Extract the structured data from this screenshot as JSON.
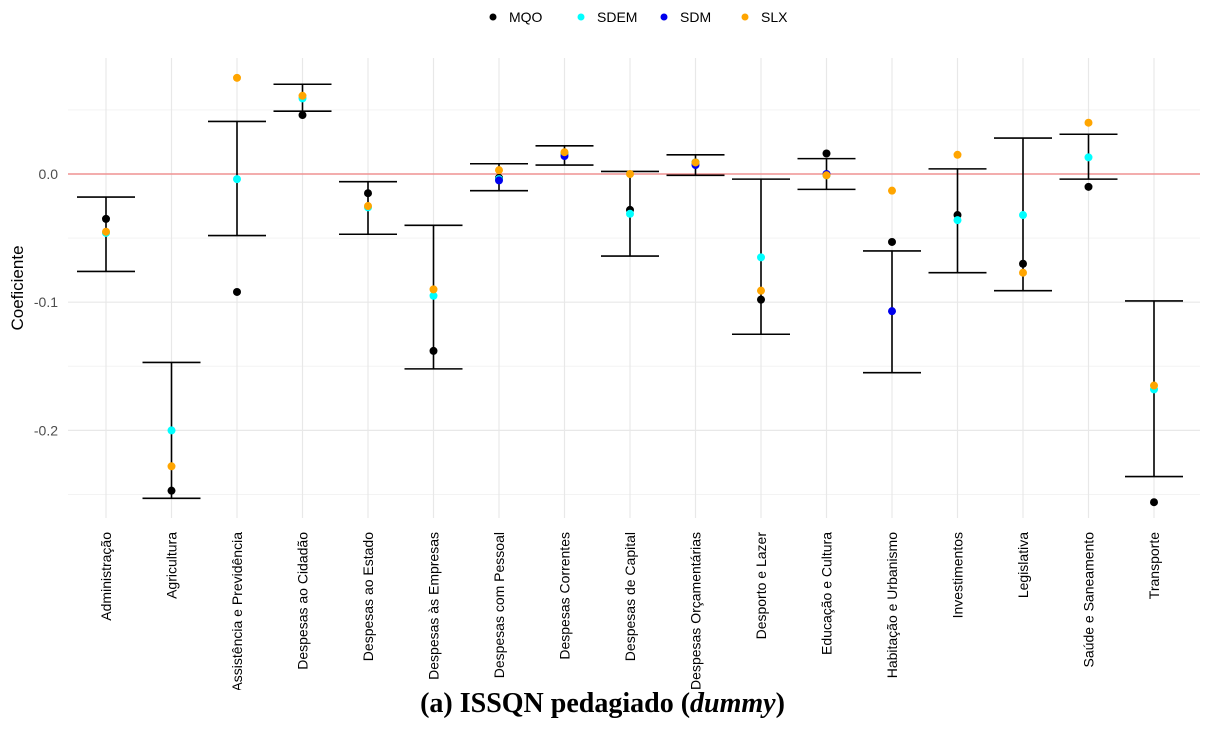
{
  "caption": {
    "prefix": "(a) ISSQN pedagiado (",
    "italic": "dummy",
    "suffix": ")"
  },
  "chart_data": {
    "type": "scatter",
    "ylabel": "Coeficiente",
    "xlabel": "",
    "ylim": [
      -0.27,
      0.09
    ],
    "yticks": [
      {
        "value": 0.0,
        "label": "0.0"
      },
      {
        "value": -0.1,
        "label": "-0.1"
      },
      {
        "value": -0.2,
        "label": "-0.2"
      }
    ],
    "grid": true,
    "legend_position": "top",
    "reference_line": {
      "y": 0.0,
      "color": "#F08080"
    },
    "categories": [
      "Administração",
      "Agricultura",
      "Assistência e Previdência",
      "Despesas ao Cidadão",
      "Despesas ao Estado",
      "Despesas às Empresas",
      "Despesas com Pessoal",
      "Despesas Correntes",
      "Despesas de Capital",
      "Despesas Orçamentárias",
      "Desporto e Lazer",
      "Educação e Cultura",
      "Habitação e Urbanismo",
      "Investimentos",
      "Legislativa",
      "Saúde e Saneamento",
      "Transporte"
    ],
    "error_bars": {
      "lower": [
        -0.076,
        -0.253,
        -0.048,
        0.049,
        -0.047,
        -0.152,
        -0.013,
        0.007,
        -0.064,
        -0.001,
        -0.125,
        -0.012,
        -0.155,
        -0.077,
        -0.091,
        -0.004,
        -0.236
      ],
      "upper": [
        -0.018,
        -0.147,
        0.041,
        0.07,
        -0.006,
        -0.04,
        0.008,
        0.022,
        0.002,
        0.015,
        -0.004,
        0.012,
        -0.06,
        0.004,
        0.028,
        0.031,
        -0.099
      ]
    },
    "series": [
      {
        "name": "MQO",
        "color": "#000000",
        "values": [
          -0.035,
          -0.247,
          -0.092,
          0.046,
          -0.015,
          -0.138,
          -0.003,
          0.016,
          -0.028,
          0.009,
          -0.098,
          0.016,
          -0.053,
          -0.032,
          -0.07,
          -0.01,
          -0.256
        ]
      },
      {
        "name": "SDEM",
        "color": "#00FFFF",
        "values": [
          -0.046,
          -0.2,
          -0.004,
          0.059,
          -0.026,
          -0.095,
          -0.004,
          0.016,
          -0.031,
          0.009,
          -0.065,
          -0.001,
          null,
          -0.036,
          -0.032,
          0.013,
          -0.168
        ]
      },
      {
        "name": "SDM",
        "color": "#0000EE",
        "values": [
          null,
          null,
          null,
          null,
          null,
          null,
          -0.005,
          0.014,
          null,
          0.007,
          null,
          0.0,
          -0.107,
          null,
          null,
          null,
          null
        ]
      },
      {
        "name": "SLX",
        "color": "#FFA500",
        "values": [
          -0.045,
          -0.228,
          0.075,
          0.061,
          -0.025,
          -0.09,
          0.003,
          0.017,
          0.0,
          0.009,
          -0.091,
          -0.001,
          -0.013,
          0.015,
          -0.077,
          0.04,
          -0.165
        ]
      }
    ]
  }
}
